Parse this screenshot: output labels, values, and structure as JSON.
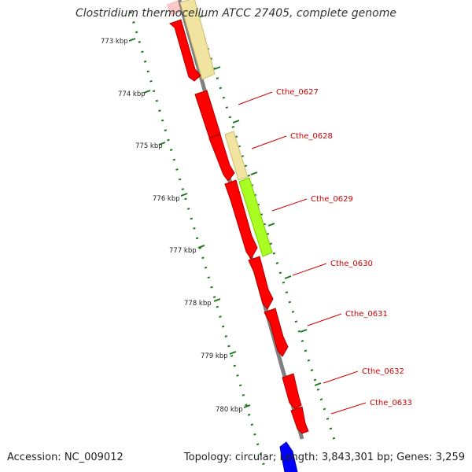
{
  "title": "Clostridium thermocellum ATCC 27405, complete genome",
  "footer": {
    "accession": "Accession: NC_009012",
    "summary": "Topology: circular; Length: 3,843,301 bp; Genes: 3,259"
  },
  "colors": {
    "cds": "#ff0000",
    "cds_outline": "#b00000",
    "pale_feature": "#f0e4a0",
    "green_feature": "#aaff22",
    "blue_feature": "#0000ff",
    "backbone": "#7f7f7f",
    "ruler": "#1c7a1c",
    "label": "#cc0000"
  },
  "ruler": {
    "unit": "kbp",
    "major_ticks": [
      {
        "value": 773,
        "label": "773 kbp"
      },
      {
        "value": 774,
        "label": "774 kbp"
      },
      {
        "value": 775,
        "label": "775 kbp"
      },
      {
        "value": 776,
        "label": "776 kbp"
      },
      {
        "value": 777,
        "label": "777 kbp"
      },
      {
        "value": 778,
        "label": "778 kbp"
      },
      {
        "value": 779,
        "label": "779 kbp"
      },
      {
        "value": 780,
        "label": "780 kbp"
      }
    ]
  },
  "gene_labels": [
    "Cthe_0627",
    "Cthe_0628",
    "Cthe_0629",
    "Cthe_0630",
    "Cthe_0631",
    "Cthe_0632",
    "Cthe_0633"
  ]
}
